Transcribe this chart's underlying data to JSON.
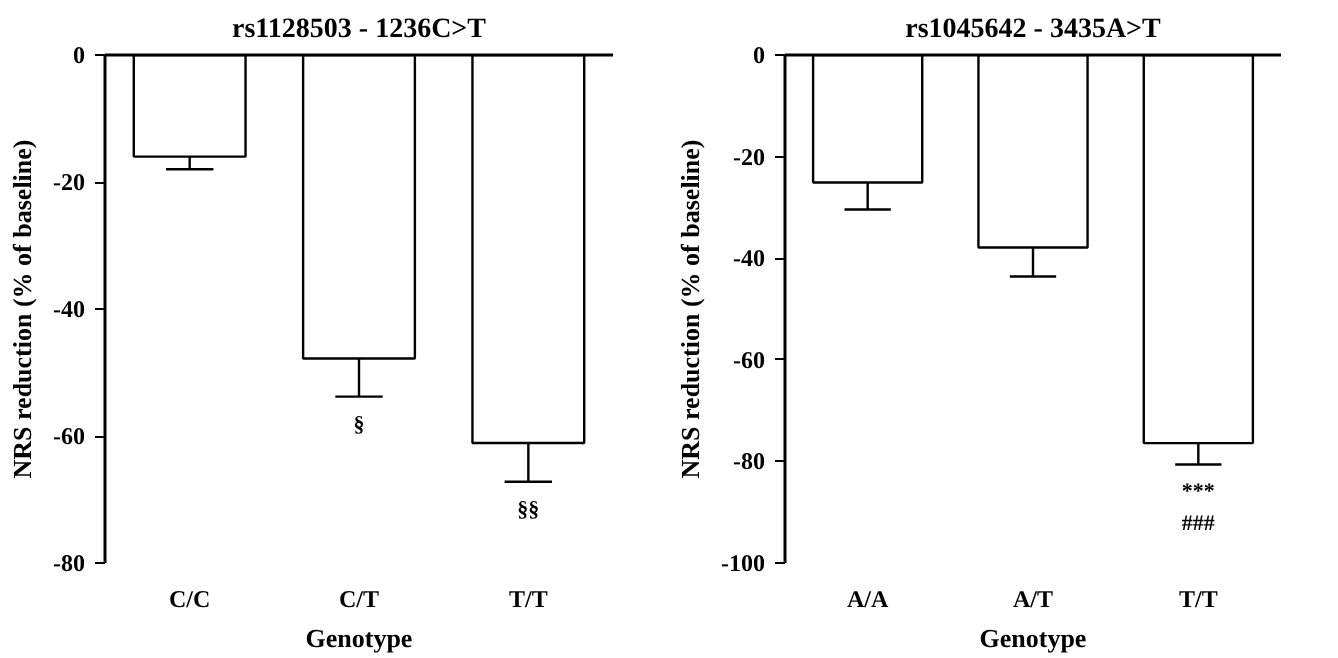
{
  "chart_data": [
    {
      "type": "bar",
      "title": "rs1128503 - 1236C>T",
      "xlabel": "Genotype",
      "ylabel": "NRS reduction (% of baseline)",
      "categories": [
        "C/C",
        "C/T",
        "T/T"
      ],
      "values": [
        -16,
        -47.8,
        -61.1
      ],
      "errors": [
        [
          -18,
          -16
        ],
        [
          -53.8,
          -47.8
        ],
        [
          -67.2,
          -61.1
        ]
      ],
      "color": "#ffffff",
      "ylim": [
        -80,
        0
      ],
      "yticks": [
        -80,
        -60,
        -40,
        -20,
        0
      ],
      "grid": false,
      "value_labels": [
        null,
        "§",
        "§§"
      ]
    },
    {
      "type": "bar",
      "title": "rs1045642 - 3435A>T",
      "xlabel": "Genotype",
      "ylabel": "NRS reduction (% of baseline)",
      "categories": [
        "A/A",
        "A/T",
        "T/T"
      ],
      "values": [
        -25.1,
        -37.9,
        -76.4
      ],
      "errors": [
        [
          -30.4,
          -25.1
        ],
        [
          -43.6,
          -37.9
        ],
        [
          -80.6,
          -76.4
        ]
      ],
      "color": "#ffffff",
      "ylim": [
        -100,
        0
      ],
      "yticks": [
        -100,
        -80,
        -60,
        -40,
        -20,
        0
      ],
      "grid": false,
      "value_labels": [
        null,
        null,
        "***\n###"
      ]
    }
  ]
}
